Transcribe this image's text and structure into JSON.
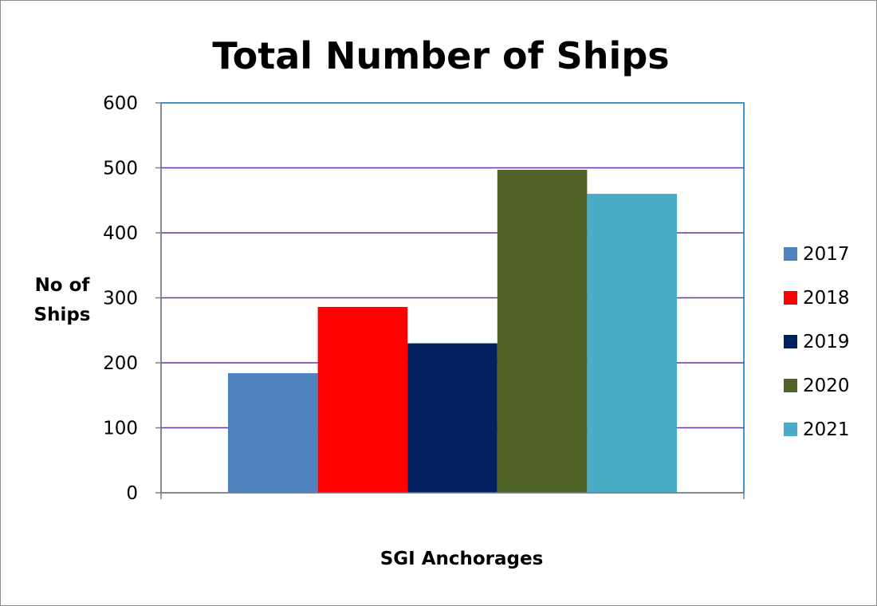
{
  "chart_data": {
    "type": "bar",
    "title": "Total Number of Ships",
    "xlabel": "SGI Anchorages",
    "ylabel": "No of Ships",
    "ylabel_lines": [
      "No of",
      "Ships"
    ],
    "ylim": [
      0,
      600
    ],
    "yticks": [
      0,
      100,
      200,
      300,
      400,
      500,
      600
    ],
    "categories": [
      ""
    ],
    "grid": true,
    "legend_position": "right",
    "series": [
      {
        "name": "2017",
        "values": [
          184
        ],
        "color": "#4f81bd"
      },
      {
        "name": "2018",
        "values": [
          286
        ],
        "color": "#ff0000"
      },
      {
        "name": "2019",
        "values": [
          230
        ],
        "color": "#002060"
      },
      {
        "name": "2020",
        "values": [
          497
        ],
        "color": "#4f6228"
      },
      {
        "name": "2021",
        "values": [
          460
        ],
        "color": "#4bacc6"
      }
    ],
    "colors": {
      "gridline": "#7030a0",
      "plot_border": "#0070c0",
      "axis": "#7f7f7f"
    }
  }
}
